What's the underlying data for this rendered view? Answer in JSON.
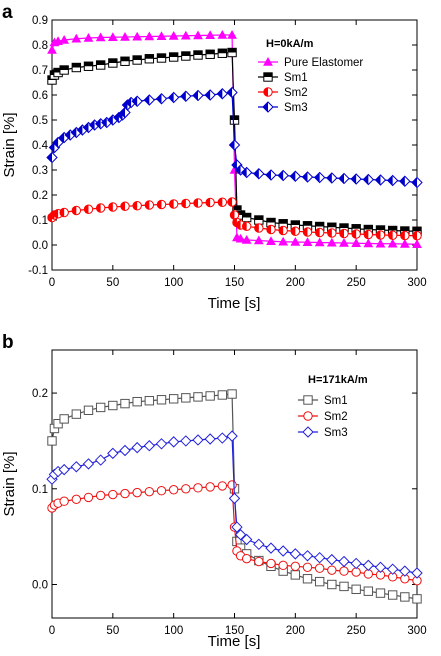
{
  "chart_data": [
    {
      "type": "scatter",
      "panel_label": "a",
      "annotation": "H=0kA/m",
      "xlabel": "Time [s]",
      "ylabel": "Strain [%]",
      "xlim": [
        0,
        300
      ],
      "ylim": [
        -0.1,
        0.9
      ],
      "xticks": [
        0,
        50,
        100,
        150,
        200,
        250,
        300
      ],
      "yticks": [
        -0.1,
        0.0,
        0.1,
        0.2,
        0.3,
        0.4,
        0.5,
        0.6,
        0.7,
        0.8,
        0.9
      ],
      "xtick_labels": [
        "0",
        "50",
        "100",
        "150",
        "200",
        "250",
        "300"
      ],
      "ytick_labels": [
        "-0.1",
        "0.0",
        "0.1",
        "0.2",
        "0.3",
        "0.4",
        "0.5",
        "0.6",
        "0.7",
        "0.8",
        "0.9"
      ],
      "grid": false,
      "legend_position": "top-right",
      "series": [
        {
          "name": "Pure Elastomer",
          "color": "#ff00ff",
          "marker": "triangle",
          "x": [
            0,
            2,
            5,
            10,
            20,
            30,
            40,
            50,
            60,
            70,
            80,
            90,
            100,
            110,
            120,
            130,
            140,
            148,
            150,
            152,
            155,
            160,
            170,
            180,
            190,
            200,
            210,
            220,
            230,
            240,
            250,
            260,
            270,
            280,
            290,
            300
          ],
          "y": [
            0.78,
            0.81,
            0.815,
            0.82,
            0.825,
            0.828,
            0.83,
            0.831,
            0.832,
            0.833,
            0.834,
            0.835,
            0.836,
            0.837,
            0.838,
            0.839,
            0.84,
            0.84,
            0.3,
            0.03,
            0.025,
            0.02,
            0.018,
            0.015,
            0.013,
            0.012,
            0.011,
            0.01,
            0.009,
            0.008,
            0.007,
            0.006,
            0.005,
            0.005,
            0.004,
            0.003
          ]
        },
        {
          "name": "Sm1",
          "color": "#000000",
          "marker": "half-square",
          "x": [
            0,
            2,
            5,
            10,
            20,
            30,
            40,
            50,
            60,
            70,
            80,
            90,
            100,
            110,
            120,
            130,
            140,
            148,
            150,
            152,
            155,
            160,
            170,
            180,
            190,
            200,
            210,
            220,
            230,
            240,
            250,
            260,
            270,
            280,
            290,
            300
          ],
          "y": [
            0.66,
            0.68,
            0.69,
            0.7,
            0.71,
            0.715,
            0.72,
            0.728,
            0.735,
            0.74,
            0.745,
            0.748,
            0.752,
            0.756,
            0.76,
            0.763,
            0.767,
            0.77,
            0.5,
            0.14,
            0.12,
            0.11,
            0.1,
            0.09,
            0.085,
            0.08,
            0.077,
            0.074,
            0.071,
            0.068,
            0.065,
            0.062,
            0.06,
            0.058,
            0.056,
            0.055
          ]
        },
        {
          "name": "Sm2",
          "color": "#ff0000",
          "marker": "half-circle",
          "x": [
            0,
            2,
            5,
            10,
            20,
            30,
            40,
            50,
            60,
            70,
            80,
            90,
            100,
            110,
            120,
            130,
            140,
            148,
            150,
            152,
            155,
            160,
            170,
            180,
            190,
            200,
            210,
            220,
            230,
            240,
            250,
            260,
            270,
            280,
            290,
            300
          ],
          "y": [
            0.11,
            0.12,
            0.125,
            0.13,
            0.138,
            0.143,
            0.148,
            0.152,
            0.155,
            0.157,
            0.16,
            0.162,
            0.164,
            0.166,
            0.168,
            0.17,
            0.171,
            0.172,
            0.12,
            0.09,
            0.08,
            0.075,
            0.068,
            0.062,
            0.058,
            0.055,
            0.052,
            0.05,
            0.048,
            0.046,
            0.044,
            0.042,
            0.04,
            0.039,
            0.038,
            0.037
          ]
        },
        {
          "name": "Sm3",
          "color": "#0000cc",
          "marker": "half-diamond",
          "x": [
            0,
            2,
            5,
            10,
            15,
            20,
            25,
            30,
            35,
            40,
            45,
            50,
            55,
            58,
            60,
            62,
            65,
            70,
            80,
            90,
            100,
            110,
            120,
            130,
            140,
            148,
            150,
            152,
            155,
            160,
            170,
            180,
            190,
            200,
            210,
            220,
            230,
            240,
            250,
            260,
            270,
            280,
            290,
            300
          ],
          "y": [
            0.35,
            0.39,
            0.41,
            0.43,
            0.44,
            0.45,
            0.46,
            0.47,
            0.48,
            0.485,
            0.49,
            0.5,
            0.51,
            0.52,
            0.53,
            0.56,
            0.57,
            0.575,
            0.58,
            0.585,
            0.59,
            0.595,
            0.598,
            0.6,
            0.605,
            0.61,
            0.4,
            0.32,
            0.3,
            0.29,
            0.285,
            0.28,
            0.278,
            0.275,
            0.272,
            0.27,
            0.268,
            0.266,
            0.264,
            0.262,
            0.26,
            0.258,
            0.255,
            0.25
          ]
        }
      ]
    },
    {
      "type": "scatter",
      "panel_label": "b",
      "annotation": "H=171kA/m",
      "xlabel": "Time [s]",
      "ylabel": "Strain [%]",
      "xlim": [
        0,
        300
      ],
      "ylim": [
        -0.035,
        0.245
      ],
      "xticks": [
        0,
        50,
        100,
        150,
        200,
        250,
        300
      ],
      "yticks": [
        0.0,
        0.1,
        0.2
      ],
      "xtick_labels": [
        "0",
        "50",
        "100",
        "150",
        "200",
        "250",
        "300"
      ],
      "ytick_labels": [
        "0.0",
        "0.1",
        "0.2"
      ],
      "grid": false,
      "legend_position": "top-right",
      "series": [
        {
          "name": "Sm1",
          "color": "#555555",
          "marker": "open-square",
          "x": [
            0,
            2,
            5,
            10,
            20,
            30,
            40,
            50,
            60,
            70,
            80,
            90,
            100,
            110,
            120,
            130,
            140,
            148,
            150,
            152,
            155,
            160,
            170,
            180,
            190,
            200,
            210,
            220,
            230,
            240,
            250,
            260,
            270,
            280,
            290,
            300
          ],
          "y": [
            0.15,
            0.163,
            0.168,
            0.173,
            0.178,
            0.182,
            0.185,
            0.187,
            0.189,
            0.191,
            0.192,
            0.193,
            0.194,
            0.195,
            0.196,
            0.197,
            0.198,
            0.199,
            0.1,
            0.045,
            0.038,
            0.032,
            0.025,
            0.019,
            0.014,
            0.01,
            0.006,
            0.003,
            0.0,
            -0.002,
            -0.005,
            -0.007,
            -0.009,
            -0.011,
            -0.013,
            -0.015
          ]
        },
        {
          "name": "Sm2",
          "color": "#ee1111",
          "marker": "open-circle",
          "x": [
            0,
            2,
            5,
            10,
            20,
            30,
            40,
            50,
            60,
            70,
            80,
            90,
            100,
            110,
            120,
            130,
            140,
            148,
            150,
            152,
            155,
            160,
            170,
            180,
            190,
            200,
            210,
            220,
            230,
            240,
            250,
            260,
            270,
            280,
            290,
            300
          ],
          "y": [
            0.08,
            0.083,
            0.085,
            0.087,
            0.089,
            0.091,
            0.093,
            0.094,
            0.095,
            0.096,
            0.097,
            0.098,
            0.099,
            0.1,
            0.101,
            0.102,
            0.103,
            0.104,
            0.06,
            0.035,
            0.03,
            0.027,
            0.024,
            0.022,
            0.02,
            0.019,
            0.018,
            0.017,
            0.015,
            0.014,
            0.013,
            0.011,
            0.01,
            0.008,
            0.006,
            0.004
          ]
        },
        {
          "name": "Sm3",
          "color": "#2222dd",
          "marker": "open-diamond",
          "x": [
            0,
            2,
            5,
            10,
            20,
            30,
            40,
            50,
            60,
            70,
            80,
            90,
            100,
            110,
            120,
            130,
            140,
            148,
            150,
            152,
            155,
            160,
            170,
            180,
            190,
            200,
            210,
            220,
            230,
            240,
            250,
            260,
            270,
            280,
            290,
            300
          ],
          "y": [
            0.11,
            0.115,
            0.118,
            0.12,
            0.123,
            0.126,
            0.13,
            0.137,
            0.14,
            0.143,
            0.145,
            0.147,
            0.149,
            0.15,
            0.151,
            0.152,
            0.153,
            0.155,
            0.09,
            0.06,
            0.052,
            0.047,
            0.042,
            0.038,
            0.035,
            0.032,
            0.03,
            0.028,
            0.026,
            0.024,
            0.022,
            0.02,
            0.018,
            0.016,
            0.014,
            0.012
          ]
        }
      ]
    }
  ]
}
